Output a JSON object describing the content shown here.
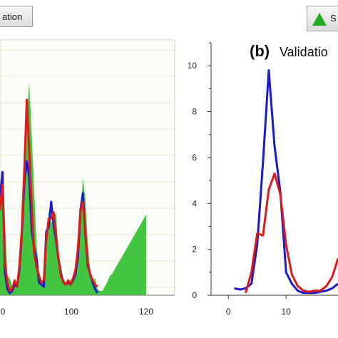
{
  "legend_left": {
    "label": "ation"
  },
  "legend_right": {
    "label": "S",
    "marker_color": "#22aa22"
  },
  "chart_data": [
    {
      "type": "line",
      "xlim": [
        0,
        120
      ],
      "ylim": [
        0,
        10
      ],
      "x_ticks": [
        "0",
        "100",
        "120"
      ],
      "grid": true,
      "series": [
        {
          "color": "#22bb22",
          "fill": true,
          "x": [
            0,
            2,
            4,
            6,
            8,
            10,
            12,
            14,
            16,
            18,
            20,
            22,
            24,
            26,
            28,
            30,
            32,
            34,
            36,
            38,
            40,
            42,
            44,
            46,
            48,
            50,
            52,
            54,
            56,
            58,
            60,
            62,
            64,
            66,
            68,
            70,
            72,
            74,
            76,
            78,
            80,
            82,
            84,
            86,
            88,
            90,
            92,
            94,
            96,
            98,
            100,
            102,
            104,
            106,
            108,
            110,
            112,
            114,
            116,
            118,
            120
          ],
          "y": [
            4.2,
            5.6,
            3.8,
            0.9,
            0.8,
            0.4,
            0.7,
            0.5,
            1.5,
            3.2,
            6.8,
            8.4,
            10.0,
            7.6,
            5.0,
            2.4,
            1.1,
            0.7,
            0.6,
            1.8,
            4.0,
            3.4,
            3.6,
            3.9,
            2.0,
            1.4,
            0.8,
            0.6,
            0.7,
            0.7,
            0.9,
            1.2,
            2.0,
            3.6,
            5.5,
            4.6,
            2.5,
            1.2,
            0.7,
            0.8,
            0.3,
            0.2,
            0.2,
            0.4,
            0.6,
            0.9,
            1.0,
            1.2,
            1.4,
            1.6,
            1.8,
            2.0,
            2.2,
            2.4,
            2.6,
            2.8,
            3.0,
            3.2,
            3.4,
            3.6,
            3.8
          ]
        },
        {
          "color": "#1a1acc",
          "x": [
            0,
            2,
            4,
            6,
            8,
            10,
            12,
            14,
            16,
            18,
            20,
            22,
            24,
            26,
            28,
            30,
            32,
            34,
            36,
            38,
            40,
            42,
            44,
            46,
            48,
            50,
            52,
            54,
            56,
            58,
            60,
            62,
            64,
            66,
            68,
            70,
            72,
            74,
            76,
            78,
            80
          ],
          "y": [
            4.6,
            5.8,
            1.1,
            0.3,
            0.1,
            0.2,
            0.5,
            0.4,
            1.2,
            3.0,
            5.4,
            6.3,
            5.6,
            3.1,
            2.2,
            1.7,
            0.6,
            0.5,
            0.4,
            3.0,
            3.2,
            4.4,
            3.3,
            2.6,
            1.7,
            1.0,
            0.6,
            0.5,
            0.6,
            0.5,
            0.7,
            1.0,
            1.8,
            4.0,
            4.8,
            2.9,
            1.4,
            1.0,
            0.6,
            0.3,
            0.1
          ]
        },
        {
          "color": "#dd1a1a",
          "x": [
            0,
            2,
            4,
            6,
            8,
            10,
            12,
            14,
            16,
            18,
            20,
            22,
            24,
            26,
            28,
            30,
            32,
            34,
            36,
            38,
            40,
            42,
            44,
            46,
            48,
            50,
            52,
            54,
            56,
            58,
            60,
            62,
            64,
            66,
            68,
            70,
            72,
            74,
            76,
            78,
            80
          ],
          "y": [
            4.0,
            5.2,
            1.6,
            0.6,
            0.2,
            0.3,
            0.7,
            0.4,
            1.4,
            3.2,
            6.0,
            9.2,
            6.8,
            4.2,
            2.0,
            1.3,
            0.9,
            0.6,
            0.7,
            2.6,
            3.6,
            3.6,
            3.9,
            2.8,
            1.7,
            0.9,
            0.6,
            0.5,
            0.7,
            0.5,
            0.8,
            1.2,
            2.2,
            4.0,
            4.4,
            3.0,
            1.5,
            1.0,
            0.7,
            0.5,
            0.4
          ]
        }
      ]
    },
    {
      "type": "line",
      "title": "Validatio",
      "panel_label": "(b)",
      "xlim": [
        -3,
        19
      ],
      "ylim": [
        0,
        11
      ],
      "x_ticks": [
        "0",
        "10"
      ],
      "y_ticks": [
        "0",
        "2",
        "4",
        "6",
        "8",
        "10"
      ],
      "grid": false,
      "series": [
        {
          "color": "#1a1acc",
          "x": [
            1,
            2,
            3,
            4,
            5,
            6,
            7,
            8,
            9,
            10,
            11,
            12,
            13,
            14,
            15,
            16,
            17,
            18,
            19
          ],
          "y": [
            0.3,
            0.25,
            0.3,
            0.5,
            2.2,
            5.8,
            9.8,
            6.5,
            4.5,
            1.0,
            0.5,
            0.2,
            0.1,
            0.1,
            0.1,
            0.15,
            0.2,
            0.3,
            0.5
          ]
        },
        {
          "color": "#dd1a1a",
          "x": [
            3,
            4,
            5,
            6,
            7,
            8,
            9,
            10,
            11,
            12,
            13,
            14,
            15,
            16,
            17,
            18,
            19
          ],
          "y": [
            0.1,
            1.0,
            2.7,
            2.6,
            4.6,
            5.3,
            4.4,
            2.2,
            0.9,
            0.4,
            0.2,
            0.15,
            0.2,
            0.2,
            0.4,
            0.8,
            1.6
          ]
        }
      ]
    }
  ]
}
